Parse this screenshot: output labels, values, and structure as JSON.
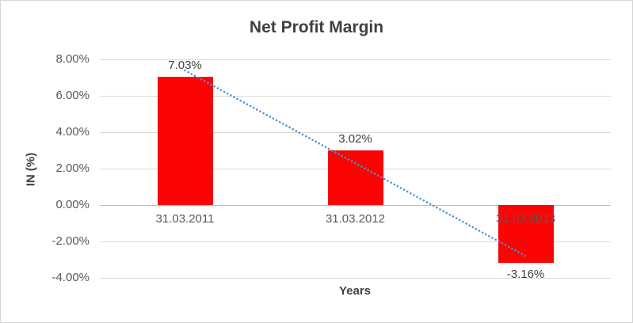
{
  "chart_data": {
    "type": "bar",
    "title": "Net Profit Margin",
    "xlabel": "Years",
    "ylabel": "IN (%)",
    "categories": [
      "31.03.2011",
      "31.03.2012",
      "31.03.2013"
    ],
    "values": [
      7.03,
      3.02,
      -3.16
    ],
    "data_labels": [
      "7.03%",
      "3.02%",
      "-3.16%"
    ],
    "y_ticks": [
      "8.00%",
      "6.00%",
      "4.00%",
      "2.00%",
      "0.00%",
      "-2.00%",
      "-4.00%"
    ],
    "y_tick_values": [
      8,
      6,
      4,
      2,
      0,
      -2,
      -4
    ],
    "ylim": [
      -4,
      8
    ],
    "grid": true,
    "trendline": true,
    "legend": "none",
    "bar_color": "#fb0404",
    "trendline_color": "#4a90d9",
    "title_color": "#404040",
    "axis_text_color": "#595959"
  }
}
